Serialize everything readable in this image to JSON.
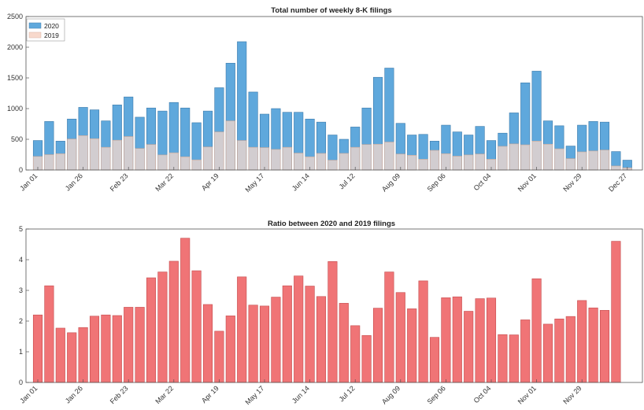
{
  "chart_data": [
    {
      "type": "bar",
      "title": "Total number of weekly 8-K filings",
      "xlabel": "",
      "ylabel": "",
      "ylim": [
        0,
        2500
      ],
      "yticks": [
        0,
        500,
        1000,
        1500,
        2000,
        2500
      ],
      "xtick_labels": [
        "Jan 01",
        "Jan 26",
        "Feb 23",
        "Mar 22",
        "Apr 19",
        "May 17",
        "Jun 14",
        "Jul 12",
        "Aug 09",
        "Sep 06",
        "Oct 04",
        "Nov 01",
        "Nov 29",
        "Dec 27"
      ],
      "xtick_positions": [
        0,
        4,
        8,
        12,
        16,
        20,
        24,
        28,
        32,
        36,
        40,
        44,
        48,
        52
      ],
      "legend_position": "top-left",
      "grid": false,
      "series": [
        {
          "name": "2020",
          "color": "#5fa8dc",
          "values": [
            480,
            790,
            470,
            830,
            1020,
            980,
            800,
            1060,
            1190,
            860,
            1010,
            960,
            1100,
            1010,
            770,
            960,
            1340,
            1740,
            2090,
            1270,
            910,
            1000,
            940,
            940,
            830,
            780,
            570,
            500,
            700,
            1010,
            1510,
            1660,
            760,
            570,
            580,
            470,
            730,
            620,
            570,
            710,
            480,
            600,
            930,
            1420,
            1610,
            800,
            720,
            390,
            730,
            790,
            780,
            300,
            160
          ]
        },
        {
          "name": "2019",
          "color": "#f8d9cc",
          "values": [
            220,
            250,
            265,
            505,
            560,
            510,
            370,
            485,
            545,
            350,
            415,
            245,
            280,
            215,
            165,
            375,
            620,
            800,
            480,
            370,
            365,
            335,
            370,
            275,
            215,
            270,
            160,
            270,
            370,
            415,
            420,
            455,
            260,
            240,
            175,
            320,
            265,
            225,
            245,
            260,
            175,
            385,
            425,
            410,
            470,
            420,
            345,
            185,
            295,
            310,
            325,
            65,
            35
          ]
        }
      ]
    },
    {
      "type": "bar",
      "title": "Ratio between 2020 and 2019 filings",
      "xlabel": "",
      "ylabel": "",
      "ylim": [
        0,
        5
      ],
      "yticks": [
        0,
        1,
        2,
        3,
        4,
        5
      ],
      "xtick_labels": [
        "Jan 01",
        "Jan 26",
        "Feb 23",
        "Mar 22",
        "Apr 19",
        "May 17",
        "Jun 14",
        "Jul 12",
        "Aug 09",
        "Sep 06",
        "Oct 04",
        "Nov 01",
        "Nov 29"
      ],
      "xtick_positions": [
        0,
        4,
        8,
        12,
        16,
        20,
        24,
        28,
        32,
        36,
        40,
        44,
        48
      ],
      "grid": false,
      "series": [
        {
          "color": "#f07476",
          "values": [
            2.2,
            3.15,
            1.77,
            1.62,
            1.79,
            2.16,
            2.2,
            2.18,
            2.45,
            2.45,
            3.41,
            3.6,
            3.95,
            4.7,
            3.64,
            2.54,
            1.67,
            2.17,
            3.44,
            2.52,
            2.49,
            2.78,
            3.15,
            3.47,
            3.14,
            2.8,
            3.94,
            2.58,
            1.85,
            1.53,
            2.42,
            3.6,
            2.93,
            2.4,
            3.31,
            1.47,
            2.76,
            2.79,
            2.32,
            2.73,
            2.75,
            1.56,
            1.55,
            2.04,
            3.38,
            1.9,
            2.07,
            2.15,
            2.67,
            2.43,
            2.35,
            4.6
          ]
        }
      ]
    }
  ]
}
